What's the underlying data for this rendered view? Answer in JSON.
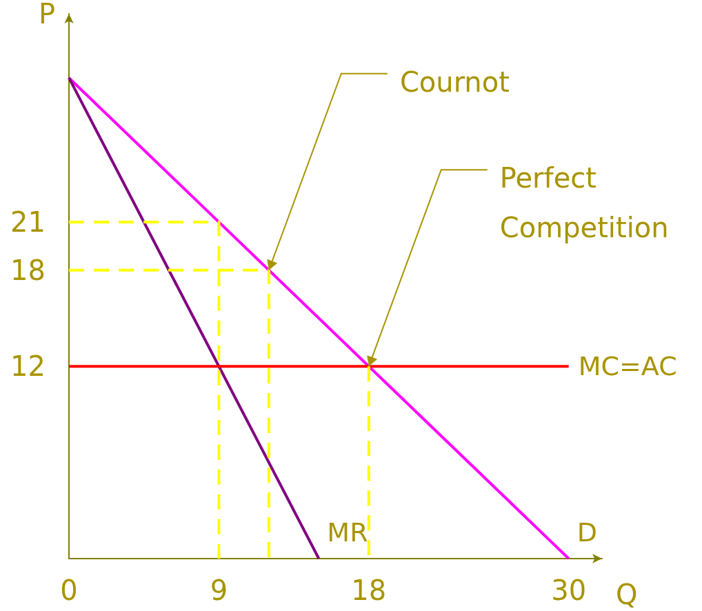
{
  "chart_data": {
    "type": "line",
    "xlabel": "Q",
    "ylabel": "P",
    "xlim": [
      0,
      32
    ],
    "ylim": [
      0,
      34
    ],
    "xticks": [
      0,
      9,
      18,
      30
    ],
    "yticks": [
      12,
      18,
      21
    ],
    "grid": false,
    "legend": false,
    "marker": "none",
    "series": [
      {
        "name": "D",
        "color": "#ff00ff",
        "x": [
          0,
          30
        ],
        "values": [
          30,
          0
        ]
      },
      {
        "name": "MR",
        "color": "#800080",
        "x": [
          0,
          15
        ],
        "values": [
          30,
          0
        ]
      },
      {
        "name": "MC=AC",
        "color": "#ff0000",
        "x": [
          0,
          30
        ],
        "values": [
          12,
          12
        ]
      },
      {
        "color": "#ffff00",
        "line_style": "dashed",
        "x": [
          0,
          9,
          9
        ],
        "values": [
          21,
          21,
          0
        ]
      },
      {
        "color": "#ffff00",
        "line_style": "dashed",
        "x": [
          0,
          12,
          12
        ],
        "values": [
          18,
          18,
          0
        ]
      },
      {
        "color": "#ffff00",
        "line_style": "dashed",
        "x": [
          18,
          18
        ],
        "values": [
          12,
          0
        ]
      }
    ],
    "annotations": [
      {
        "text": "Cournot",
        "x": 12,
        "y": 18
      },
      {
        "text": "Perfect Competition",
        "x": 18,
        "y": 12
      }
    ]
  }
}
